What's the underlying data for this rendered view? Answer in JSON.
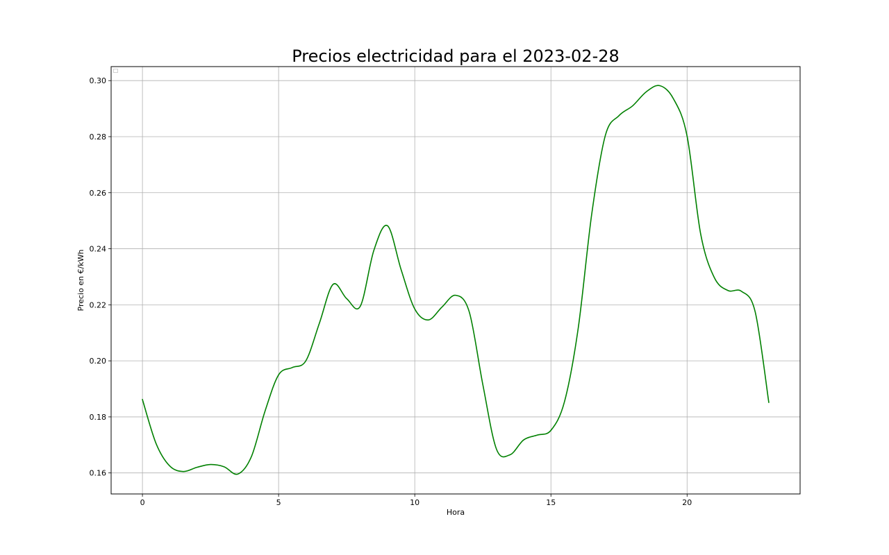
{
  "chart_data": {
    "type": "line",
    "title": "Precios electricidad para el 2023-02-28",
    "xlabel": "Hora",
    "ylabel": "Precio en €/kWh",
    "xlim": [
      -1.15,
      24.15
    ],
    "ylim": [
      0.1525,
      0.305
    ],
    "xticks": [
      0,
      5,
      10,
      15,
      20
    ],
    "xtick_labels": [
      "0",
      "5",
      "10",
      "15",
      "20"
    ],
    "yticks": [
      0.16,
      0.18,
      0.2,
      0.22,
      0.24,
      0.26,
      0.28,
      0.3
    ],
    "ytick_labels": [
      "0.16",
      "0.18",
      "0.20",
      "0.22",
      "0.24",
      "0.26",
      "0.28",
      "0.30"
    ],
    "grid": true,
    "smooth": true,
    "series": [
      {
        "color": "#008000",
        "x": [
          0,
          0.5,
          1,
          1.5,
          2,
          2.5,
          3,
          3.5,
          4,
          4.5,
          5,
          5.5,
          6,
          6.5,
          7,
          7.5,
          8,
          8.5,
          9,
          9.5,
          10,
          10.5,
          11,
          11.5,
          12,
          12.5,
          13,
          13.5,
          14,
          14.5,
          15,
          15.5,
          16,
          16.5,
          17,
          17.5,
          18,
          18.5,
          19,
          19.5,
          20,
          20.5,
          21,
          21.5,
          22,
          22.5,
          23
        ],
        "values": [
          0.1862,
          0.1705,
          0.1625,
          0.1605,
          0.162,
          0.163,
          0.1622,
          0.1596,
          0.1658,
          0.182,
          0.195,
          0.1976,
          0.2,
          0.2135,
          0.2273,
          0.2222,
          0.2195,
          0.2395,
          0.2482,
          0.2325,
          0.2185,
          0.2146,
          0.2192,
          0.2234,
          0.2175,
          0.1915,
          0.1685,
          0.1665,
          0.1718,
          0.1735,
          0.1752,
          0.1855,
          0.2115,
          0.2525,
          0.2805,
          0.2875,
          0.291,
          0.296,
          0.2982,
          0.2935,
          0.2802,
          0.2452,
          0.2297,
          0.2251,
          0.2248,
          0.2175,
          0.1852
        ]
      }
    ]
  }
}
